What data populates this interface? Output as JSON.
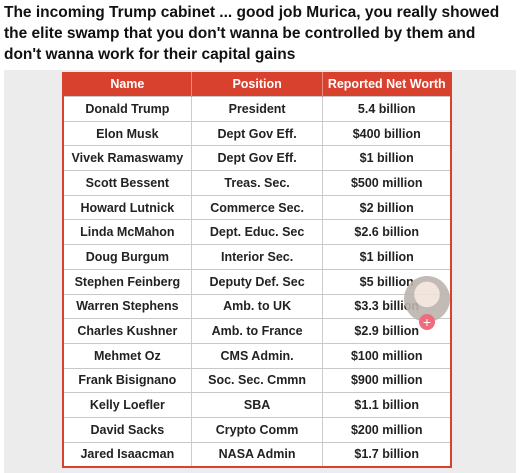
{
  "post": {
    "text": "The incoming Trump cabinet ... good job Murica, you really showed the elite swamp that you don't wanna be controlled by them and don't wanna work for their capital gains"
  },
  "table": {
    "header": [
      "Name",
      "Position",
      "Reported Net Worth"
    ],
    "rows": [
      [
        "Donald Trump",
        "President",
        "5.4 billion"
      ],
      [
        "Elon Musk",
        "Dept Gov Eff.",
        "$400 billion"
      ],
      [
        "Vivek Ramaswamy",
        "Dept Gov Eff.",
        "$1 billion"
      ],
      [
        "Scott Bessent",
        "Treas. Sec.",
        "$500 million"
      ],
      [
        "Howard Lutnick",
        "Commerce Sec.",
        "$2 billion"
      ],
      [
        "Linda McMahon",
        "Dept. Educ. Sec",
        "$2.6 billion"
      ],
      [
        "Doug Burgum",
        "Interior Sec.",
        "$1 billion"
      ],
      [
        "Stephen Feinberg",
        "Deputy Def. Sec",
        "$5 billion"
      ],
      [
        "Warren Stephens",
        "Amb. to UK",
        "$3.3 billion"
      ],
      [
        "Charles Kushner",
        "Amb. to France",
        "$2.9 billion"
      ],
      [
        "Mehmet Oz",
        "CMS Admin.",
        "$100 million"
      ],
      [
        "Frank Bisignano",
        "Soc. Sec. Cmmn",
        "$900 million"
      ],
      [
        "Kelly Loefler",
        "SBA",
        "$1.1 billion"
      ],
      [
        "David Sacks",
        "Crypto Comm",
        "$200 million"
      ],
      [
        "Jared Isaacman",
        "NASA Admin",
        "$1.7 billion"
      ]
    ]
  }
}
